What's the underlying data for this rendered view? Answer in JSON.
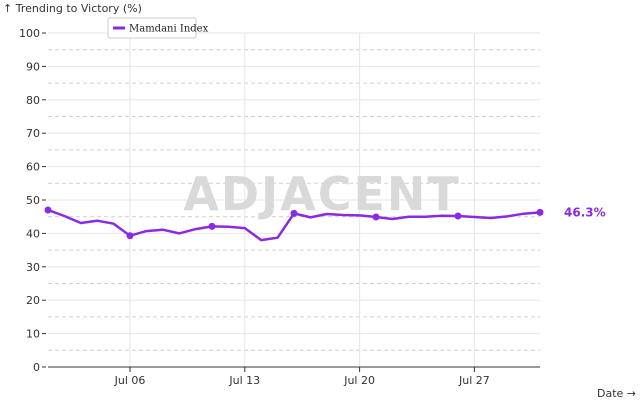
{
  "colors": {
    "series": "#8a2be2",
    "grid": "#e6e6e6",
    "axis": "#333333",
    "watermark": "#d9d9d9"
  },
  "chart_data": {
    "type": "line",
    "title": "",
    "ylabel": "↑ Trending to Victory (%)",
    "xlabel": "Date →",
    "ylim": [
      0,
      100
    ],
    "yticks": [
      0,
      10,
      20,
      30,
      40,
      50,
      60,
      70,
      80,
      90,
      100
    ],
    "xlim": [
      "2025-07-01",
      "2025-07-31"
    ],
    "xticks": [
      {
        "date": "2025-07-06",
        "label": "Jul 06"
      },
      {
        "date": "2025-07-13",
        "label": "Jul 13"
      },
      {
        "date": "2025-07-20",
        "label": "Jul 20"
      },
      {
        "date": "2025-07-27",
        "label": "Jul 27"
      }
    ],
    "grid": true,
    "legend_position": "top-left",
    "watermark": "ADJACENT",
    "last_value_label": "46.3%",
    "series": [
      {
        "name": "Mamdani Index",
        "color": "#8a2be2",
        "x": [
          "2025-07-01",
          "2025-07-02",
          "2025-07-03",
          "2025-07-04",
          "2025-07-05",
          "2025-07-06",
          "2025-07-07",
          "2025-07-08",
          "2025-07-09",
          "2025-07-10",
          "2025-07-11",
          "2025-07-12",
          "2025-07-13",
          "2025-07-14",
          "2025-07-15",
          "2025-07-16",
          "2025-07-17",
          "2025-07-18",
          "2025-07-19",
          "2025-07-20",
          "2025-07-21",
          "2025-07-22",
          "2025-07-23",
          "2025-07-24",
          "2025-07-25",
          "2025-07-26",
          "2025-07-27",
          "2025-07-28",
          "2025-07-29",
          "2025-07-30",
          "2025-07-31"
        ],
        "values": [
          47.0,
          45.2,
          43.1,
          43.8,
          42.9,
          39.3,
          40.7,
          41.1,
          40.0,
          41.3,
          42.1,
          42.0,
          41.6,
          38.0,
          38.7,
          46.0,
          44.8,
          45.8,
          45.5,
          45.4,
          44.9,
          44.3,
          45.0,
          45.0,
          45.3,
          45.2,
          44.9,
          44.6,
          45.1,
          45.9,
          46.3
        ],
        "markers": [
          "2025-07-01",
          "2025-07-06",
          "2025-07-11",
          "2025-07-16",
          "2025-07-21",
          "2025-07-26",
          "2025-07-31"
        ]
      }
    ]
  }
}
